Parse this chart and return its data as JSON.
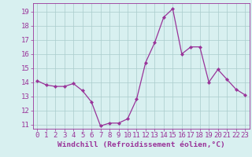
{
  "x": [
    0,
    1,
    2,
    3,
    4,
    5,
    6,
    7,
    8,
    9,
    10,
    11,
    12,
    13,
    14,
    15,
    16,
    17,
    18,
    19,
    20,
    21,
    22,
    23
  ],
  "y": [
    14.1,
    13.8,
    13.7,
    13.7,
    13.9,
    13.4,
    12.6,
    10.9,
    11.1,
    11.1,
    11.4,
    12.8,
    15.4,
    16.8,
    18.6,
    19.2,
    16.0,
    16.5,
    16.5,
    14.0,
    14.9,
    14.2,
    13.5,
    13.1
  ],
  "line_color": "#993399",
  "marker": "D",
  "marker_size": 2.2,
  "bg_color": "#d8f0f0",
  "grid_color": "#aacccc",
  "xlabel": "Windchill (Refroidissement éolien,°C)",
  "xlabel_color": "#993399",
  "tick_color": "#993399",
  "ylim": [
    10.7,
    19.6
  ],
  "xlim": [
    -0.5,
    23.5
  ],
  "yticks": [
    11,
    12,
    13,
    14,
    15,
    16,
    17,
    18,
    19
  ],
  "xticks": [
    0,
    1,
    2,
    3,
    4,
    5,
    6,
    7,
    8,
    9,
    10,
    11,
    12,
    13,
    14,
    15,
    16,
    17,
    18,
    19,
    20,
    21,
    22,
    23
  ],
  "axis_fontsize": 6.5,
  "xlabel_fontsize": 6.8,
  "line_width": 0.9
}
